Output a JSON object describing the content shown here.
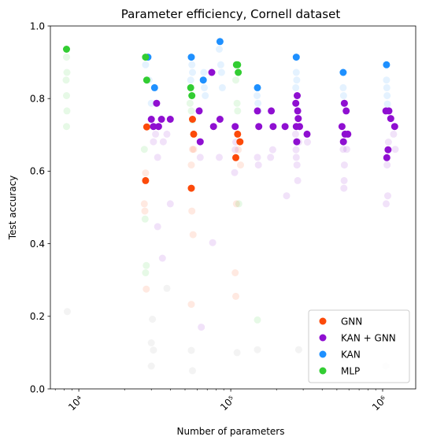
{
  "chart_data": {
    "type": "scatter",
    "title": "Parameter efficiency, Cornell dataset",
    "xlabel": "Number of parameters",
    "ylabel": "Test accuracy",
    "xscale": "log",
    "xlim": [
      6500,
      1650000
    ],
    "ylim": [
      0.0,
      1.0
    ],
    "x_ticks": [
      {
        "value": 10000,
        "label": "10⁴"
      },
      {
        "value": 100000,
        "label": "10⁵"
      },
      {
        "value": 1000000,
        "label": "10⁶"
      }
    ],
    "y_ticks": [
      {
        "value": 0.0,
        "label": "0.0"
      },
      {
        "value": 0.2,
        "label": "0.2"
      },
      {
        "value": 0.4,
        "label": "0.4"
      },
      {
        "value": 0.6,
        "label": "0.6"
      },
      {
        "value": 0.8,
        "label": "0.8"
      },
      {
        "value": 1.0,
        "label": "1.0"
      }
    ],
    "legend_position": "lower-right",
    "grid": false,
    "series": [
      {
        "name": "GNN",
        "color": "#fc4a0a",
        "points": [
          [
            27500,
            0.574
          ],
          [
            28000,
            0.722
          ],
          [
            55000,
            0.553
          ],
          [
            56000,
            0.743
          ],
          [
            57000,
            0.702
          ],
          [
            108000,
            0.637
          ],
          [
            111000,
            0.702
          ],
          [
            115000,
            0.681
          ]
        ],
        "faint_points": [
          [
            27500,
            0.595
          ],
          [
            27000,
            0.51
          ],
          [
            27200,
            0.49
          ],
          [
            27800,
            0.275
          ],
          [
            55000,
            0.617
          ],
          [
            55500,
            0.49
          ],
          [
            56000,
            0.66
          ],
          [
            56500,
            0.425
          ],
          [
            55000,
            0.233
          ],
          [
            57000,
            0.66
          ],
          [
            109000,
            0.51
          ],
          [
            107000,
            0.32
          ],
          [
            108000,
            0.255
          ],
          [
            112000,
            0.659
          ],
          [
            116000,
            0.617
          ]
        ]
      },
      {
        "name": "KAN + GNN",
        "color": "#8f0fd1",
        "points": [
          [
            30000,
            0.743
          ],
          [
            31000,
            0.723
          ],
          [
            32500,
            0.787
          ],
          [
            33500,
            0.723
          ],
          [
            35000,
            0.743
          ],
          [
            40000,
            0.743
          ],
          [
            62000,
            0.766
          ],
          [
            63000,
            0.681
          ],
          [
            75000,
            0.872
          ],
          [
            77000,
            0.723
          ],
          [
            85000,
            0.743
          ],
          [
            107000,
            0.723
          ],
          [
            150000,
            0.766
          ],
          [
            153000,
            0.723
          ],
          [
            185000,
            0.766
          ],
          [
            190000,
            0.723
          ],
          [
            228000,
            0.723
          ],
          [
            268000,
            0.787
          ],
          [
            270000,
            0.723
          ],
          [
            272000,
            0.681
          ],
          [
            274000,
            0.808
          ],
          [
            276000,
            0.766
          ],
          [
            278000,
            0.745
          ],
          [
            284000,
            0.723
          ],
          [
            318000,
            0.702
          ],
          [
            540000,
            0.723
          ],
          [
            552000,
            0.681
          ],
          [
            560000,
            0.787
          ],
          [
            565000,
            0.702
          ],
          [
            575000,
            0.766
          ],
          [
            590000,
            0.702
          ],
          [
            1050000,
            0.766
          ],
          [
            1065000,
            0.637
          ],
          [
            1085000,
            0.659
          ],
          [
            1100000,
            0.766
          ],
          [
            1130000,
            0.745
          ],
          [
            1200000,
            0.723
          ]
        ],
        "faint_points": [
          [
            31000,
            0.681
          ],
          [
            32000,
            0.702
          ],
          [
            33000,
            0.638
          ],
          [
            33000,
            0.447
          ],
          [
            35500,
            0.36
          ],
          [
            36000,
            0.681
          ],
          [
            38000,
            0.702
          ],
          [
            40000,
            0.51
          ],
          [
            63000,
            0.638
          ],
          [
            64000,
            0.17
          ],
          [
            76000,
            0.403
          ],
          [
            84000,
            0.638
          ],
          [
            106000,
            0.596
          ],
          [
            107000,
            0.659
          ],
          [
            108000,
            0.68
          ],
          [
            150000,
            0.638
          ],
          [
            152000,
            0.617
          ],
          [
            183000,
            0.638
          ],
          [
            189000,
            0.659
          ],
          [
            233000,
            0.532
          ],
          [
            267000,
            0.702
          ],
          [
            269000,
            0.659
          ],
          [
            270000,
            0.638
          ],
          [
            273000,
            0.617
          ],
          [
            276000,
            0.574
          ],
          [
            280000,
            0.68
          ],
          [
            320000,
            0.68
          ],
          [
            550000,
            0.66
          ],
          [
            556000,
            0.553
          ],
          [
            558000,
            0.574
          ],
          [
            560000,
            0.617
          ],
          [
            580000,
            0.66
          ],
          [
            1055000,
            0.51
          ],
          [
            1070000,
            0.617
          ],
          [
            1080000,
            0.532
          ],
          [
            1090000,
            0.68
          ],
          [
            1180000,
            0.702
          ],
          [
            1210000,
            0.66
          ]
        ]
      },
      {
        "name": "KAN",
        "color": "#1e90ff",
        "points": [
          [
            28500,
            0.914
          ],
          [
            31500,
            0.83
          ],
          [
            55000,
            0.914
          ],
          [
            66000,
            0.851
          ],
          [
            85000,
            0.957
          ],
          [
            150000,
            0.83
          ],
          [
            270000,
            0.914
          ],
          [
            550000,
            0.872
          ],
          [
            1060000,
            0.893
          ]
        ],
        "faint_points": [
          [
            27500,
            0.893
          ],
          [
            29000,
            0.851
          ],
          [
            30000,
            0.787
          ],
          [
            55500,
            0.893
          ],
          [
            56000,
            0.872
          ],
          [
            54500,
            0.851
          ],
          [
            66500,
            0.872
          ],
          [
            67000,
            0.83
          ],
          [
            68000,
            0.808
          ],
          [
            84000,
            0.936
          ],
          [
            86000,
            0.893
          ],
          [
            87000,
            0.872
          ],
          [
            88000,
            0.83
          ],
          [
            149000,
            0.808
          ],
          [
            151000,
            0.787
          ],
          [
            152000,
            0.766
          ],
          [
            270000,
            0.872
          ],
          [
            272000,
            0.851
          ],
          [
            268000,
            0.83
          ],
          [
            550000,
            0.83
          ],
          [
            553000,
            0.808
          ],
          [
            556000,
            0.787
          ],
          [
            1060000,
            0.851
          ],
          [
            1065000,
            0.83
          ],
          [
            1070000,
            0.808
          ],
          [
            1075000,
            0.785
          ]
        ]
      },
      {
        "name": "MLP",
        "color": "#32cd32",
        "points": [
          [
            8300,
            0.936
          ],
          [
            27500,
            0.914
          ],
          [
            28000,
            0.851
          ],
          [
            54500,
            0.83
          ],
          [
            55500,
            0.808
          ],
          [
            109000,
            0.893
          ],
          [
            111000,
            0.893
          ],
          [
            112000,
            0.872
          ]
        ],
        "faint_points": [
          [
            8300,
            0.914
          ],
          [
            8350,
            0.872
          ],
          [
            8250,
            0.851
          ],
          [
            8300,
            0.808
          ],
          [
            8350,
            0.766
          ],
          [
            8300,
            0.723
          ],
          [
            27000,
            0.66
          ],
          [
            27300,
            0.468
          ],
          [
            27500,
            0.32
          ],
          [
            27800,
            0.34
          ],
          [
            54000,
            0.787
          ],
          [
            55000,
            0.766
          ],
          [
            56000,
            0.74
          ],
          [
            108000,
            0.851
          ],
          [
            110000,
            0.787
          ],
          [
            111000,
            0.766
          ],
          [
            113000,
            0.51
          ],
          [
            150000,
            0.19
          ]
        ]
      }
    ],
    "background_points": [
      [
        8400,
        0.213
      ],
      [
        30500,
        0.192
      ],
      [
        30000,
        0.127
      ],
      [
        31000,
        0.107
      ],
      [
        38000,
        0.277
      ],
      [
        55000,
        0.106
      ],
      [
        56000,
        0.05
      ],
      [
        110000,
        0.1
      ],
      [
        150000,
        0.108
      ],
      [
        280000,
        0.108
      ],
      [
        560000,
        0.085
      ],
      [
        1050000,
        0.063
      ],
      [
        30000,
        0.063
      ]
    ]
  }
}
